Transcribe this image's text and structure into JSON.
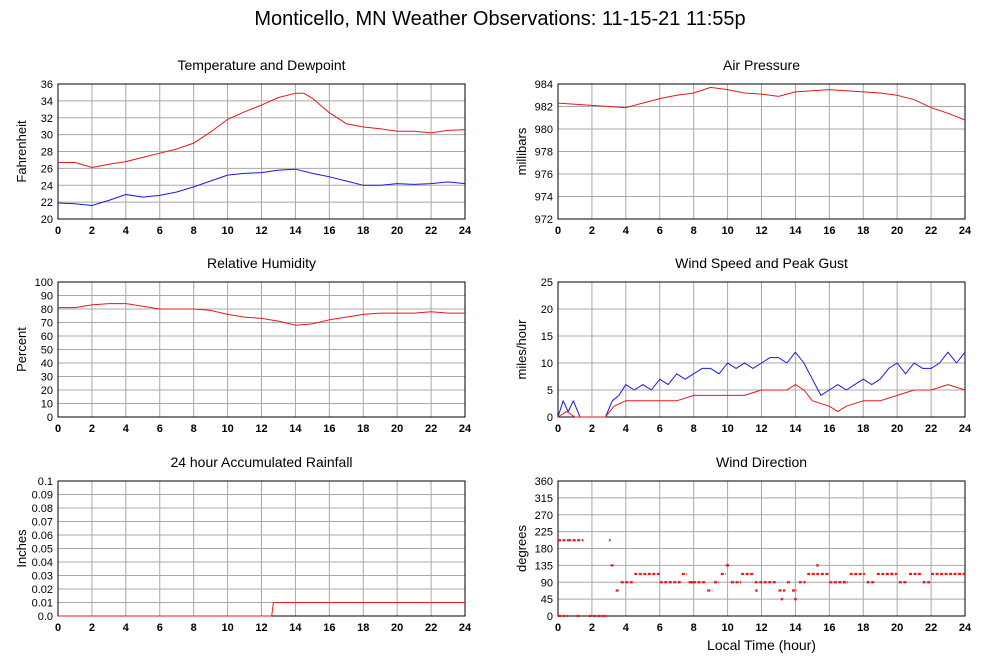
{
  "page_title": "Monticello, MN Weather Observations: 11-15-21 11:55p",
  "colors": {
    "red": "#e8191b",
    "blue": "#1a1adc",
    "grid": "#a8a8a8",
    "axis": "#000000"
  },
  "chart_data": [
    {
      "id": "temp",
      "type": "line",
      "title": "Temperature and Dewpoint",
      "xlabel": "",
      "ylabel": "Fahrenheit",
      "xlim": [
        0,
        24
      ],
      "ylim": [
        20,
        36
      ],
      "xticks": [
        0,
        2,
        4,
        6,
        8,
        10,
        12,
        14,
        16,
        18,
        20,
        22,
        24
      ],
      "yticks": [
        20,
        22,
        24,
        26,
        28,
        30,
        32,
        34,
        36
      ],
      "series": [
        {
          "color": "red",
          "points": [
            [
              0,
              26.7
            ],
            [
              1,
              26.7
            ],
            [
              2,
              26.1
            ],
            [
              3,
              26.5
            ],
            [
              4,
              26.8
            ],
            [
              5,
              27.3
            ],
            [
              6,
              27.8
            ],
            [
              7,
              28.3
            ],
            [
              8,
              29.0
            ],
            [
              9,
              30.3
            ],
            [
              10,
              31.8
            ],
            [
              11,
              32.7
            ],
            [
              12,
              33.5
            ],
            [
              13,
              34.4
            ],
            [
              14,
              34.9
            ],
            [
              14.5,
              34.9
            ],
            [
              15,
              34.3
            ],
            [
              16,
              32.6
            ],
            [
              17,
              31.3
            ],
            [
              18,
              30.9
            ],
            [
              19,
              30.7
            ],
            [
              20,
              30.4
            ],
            [
              21,
              30.4
            ],
            [
              22,
              30.2
            ],
            [
              23,
              30.5
            ],
            [
              24,
              30.6
            ]
          ]
        },
        {
          "color": "blue",
          "points": [
            [
              0,
              21.9
            ],
            [
              1,
              21.8
            ],
            [
              2,
              21.6
            ],
            [
              3,
              22.2
            ],
            [
              4,
              22.9
            ],
            [
              5,
              22.6
            ],
            [
              6,
              22.8
            ],
            [
              7,
              23.2
            ],
            [
              8,
              23.8
            ],
            [
              9,
              24.5
            ],
            [
              10,
              25.2
            ],
            [
              11,
              25.4
            ],
            [
              12,
              25.5
            ],
            [
              13,
              25.8
            ],
            [
              14,
              25.9
            ],
            [
              15,
              25.4
            ],
            [
              16,
              25.0
            ],
            [
              17,
              24.5
            ],
            [
              18,
              24.0
            ],
            [
              19,
              24.0
            ],
            [
              20,
              24.2
            ],
            [
              21,
              24.1
            ],
            [
              22,
              24.2
            ],
            [
              23,
              24.4
            ],
            [
              24,
              24.2
            ]
          ]
        }
      ]
    },
    {
      "id": "pressure",
      "type": "line",
      "title": "Air Pressure",
      "xlabel": "",
      "ylabel": "millibars",
      "xlim": [
        0,
        24
      ],
      "ylim": [
        972,
        984
      ],
      "xticks": [
        0,
        2,
        4,
        6,
        8,
        10,
        12,
        14,
        16,
        18,
        20,
        22,
        24
      ],
      "yticks": [
        972,
        974,
        976,
        978,
        980,
        982,
        984
      ],
      "series": [
        {
          "color": "red",
          "points": [
            [
              0,
              982.3
            ],
            [
              1,
              982.2
            ],
            [
              2,
              982.1
            ],
            [
              3,
              982.0
            ],
            [
              4,
              981.9
            ],
            [
              5,
              982.3
            ],
            [
              6,
              982.7
            ],
            [
              7,
              983.0
            ],
            [
              8,
              983.2
            ],
            [
              9,
              983.7
            ],
            [
              10,
              983.5
            ],
            [
              11,
              983.2
            ],
            [
              12,
              983.1
            ],
            [
              13,
              982.9
            ],
            [
              14,
              983.3
            ],
            [
              15,
              983.4
            ],
            [
              16,
              983.5
            ],
            [
              17,
              983.4
            ],
            [
              18,
              983.3
            ],
            [
              19,
              983.2
            ],
            [
              20,
              983.0
            ],
            [
              21,
              982.6
            ],
            [
              22,
              981.9
            ],
            [
              23,
              981.4
            ],
            [
              24,
              980.8
            ]
          ]
        }
      ]
    },
    {
      "id": "humidity",
      "type": "line",
      "title": "Relative Humidity",
      "xlabel": "",
      "ylabel": "Percent",
      "xlim": [
        0,
        24
      ],
      "ylim": [
        0,
        100
      ],
      "xticks": [
        0,
        2,
        4,
        6,
        8,
        10,
        12,
        14,
        16,
        18,
        20,
        22,
        24
      ],
      "yticks": [
        0,
        10,
        20,
        30,
        40,
        50,
        60,
        70,
        80,
        90,
        100
      ],
      "series": [
        {
          "color": "red",
          "points": [
            [
              0,
              81
            ],
            [
              1,
              81
            ],
            [
              2,
              83
            ],
            [
              3,
              84
            ],
            [
              4,
              84
            ],
            [
              5,
              82
            ],
            [
              6,
              80
            ],
            [
              7,
              80
            ],
            [
              8,
              80
            ],
            [
              9,
              79
            ],
            [
              10,
              76
            ],
            [
              11,
              74
            ],
            [
              12,
              73
            ],
            [
              13,
              71
            ],
            [
              14,
              68
            ],
            [
              15,
              69
            ],
            [
              16,
              72
            ],
            [
              17,
              74
            ],
            [
              18,
              76
            ],
            [
              19,
              77
            ],
            [
              20,
              77
            ],
            [
              21,
              77
            ],
            [
              22,
              78
            ],
            [
              23,
              77
            ],
            [
              24,
              77
            ]
          ]
        }
      ]
    },
    {
      "id": "wind",
      "type": "line",
      "title": "Wind Speed and Peak Gust",
      "xlabel": "",
      "ylabel": "miles/hour",
      "xlim": [
        0,
        24
      ],
      "ylim": [
        0,
        25
      ],
      "xticks": [
        0,
        2,
        4,
        6,
        8,
        10,
        12,
        14,
        16,
        18,
        20,
        22,
        24
      ],
      "yticks": [
        0,
        5,
        10,
        15,
        20,
        25
      ],
      "series": [
        {
          "color": "blue",
          "points": [
            [
              0,
              0
            ],
            [
              0.3,
              3
            ],
            [
              0.6,
              1
            ],
            [
              0.9,
              3
            ],
            [
              1.3,
              0
            ],
            [
              2,
              0
            ],
            [
              2.8,
              0
            ],
            [
              3.2,
              3
            ],
            [
              3.6,
              4
            ],
            [
              4,
              6
            ],
            [
              4.5,
              5
            ],
            [
              5,
              6
            ],
            [
              5.5,
              5
            ],
            [
              6,
              7
            ],
            [
              6.5,
              6
            ],
            [
              7,
              8
            ],
            [
              7.5,
              7
            ],
            [
              8,
              8
            ],
            [
              8.5,
              9
            ],
            [
              9,
              9
            ],
            [
              9.5,
              8
            ],
            [
              10,
              10
            ],
            [
              10.5,
              9
            ],
            [
              11,
              10
            ],
            [
              11.5,
              9
            ],
            [
              12,
              10
            ],
            [
              12.5,
              11
            ],
            [
              13,
              11
            ],
            [
              13.5,
              10
            ],
            [
              14,
              12
            ],
            [
              14.5,
              10
            ],
            [
              15,
              7
            ],
            [
              15.5,
              4
            ],
            [
              16,
              5
            ],
            [
              16.5,
              6
            ],
            [
              17,
              5
            ],
            [
              17.5,
              6
            ],
            [
              18,
              7
            ],
            [
              18.5,
              6
            ],
            [
              19,
              7
            ],
            [
              19.5,
              9
            ],
            [
              20,
              10
            ],
            [
              20.5,
              8
            ],
            [
              21,
              10
            ],
            [
              21.5,
              9
            ],
            [
              22,
              9
            ],
            [
              22.5,
              10
            ],
            [
              23,
              12
            ],
            [
              23.5,
              10
            ],
            [
              24,
              12
            ]
          ]
        },
        {
          "color": "red",
          "points": [
            [
              0,
              0
            ],
            [
              0.5,
              1
            ],
            [
              1,
              0
            ],
            [
              2.8,
              0
            ],
            [
              3.3,
              2
            ],
            [
              4,
              3
            ],
            [
              5,
              3
            ],
            [
              6,
              3
            ],
            [
              7,
              3
            ],
            [
              8,
              4
            ],
            [
              9,
              4
            ],
            [
              10,
              4
            ],
            [
              11,
              4
            ],
            [
              12,
              5
            ],
            [
              13,
              5
            ],
            [
              13.5,
              5
            ],
            [
              14,
              6
            ],
            [
              14.5,
              5
            ],
            [
              15,
              3
            ],
            [
              16,
              2
            ],
            [
              16.5,
              1
            ],
            [
              17,
              2
            ],
            [
              18,
              3
            ],
            [
              19,
              3
            ],
            [
              20,
              4
            ],
            [
              21,
              5
            ],
            [
              22,
              5
            ],
            [
              23,
              6
            ],
            [
              24,
              5
            ]
          ]
        }
      ]
    },
    {
      "id": "rain",
      "type": "line",
      "title": "24 hour Accumulated Rainfall",
      "xlabel": "",
      "ylabel": "Inches",
      "xlim": [
        0,
        24
      ],
      "ylim": [
        0,
        0.1
      ],
      "xticks": [
        0,
        2,
        4,
        6,
        8,
        10,
        12,
        14,
        16,
        18,
        20,
        22,
        24
      ],
      "yticks": [
        0.0,
        0.01,
        0.02,
        0.03,
        0.04,
        0.05,
        0.06,
        0.07,
        0.08,
        0.09,
        0.1
      ],
      "ytick_labels": [
        "0.0",
        "0.01",
        "0.02",
        "0.03",
        "0.04",
        "0.05",
        "0.06",
        "0.07",
        "0.08",
        "0.09",
        "0.1"
      ],
      "series": [
        {
          "color": "red",
          "points": [
            [
              0,
              0
            ],
            [
              12.6,
              0
            ],
            [
              12.7,
              0.01
            ],
            [
              24,
              0.01
            ]
          ]
        }
      ]
    },
    {
      "id": "direction",
      "type": "scatter",
      "title": "Wind Direction",
      "xlabel": "Local Time (hour)",
      "ylabel": "degrees",
      "xlim": [
        0,
        24
      ],
      "ylim": [
        0,
        360
      ],
      "xticks": [
        0,
        2,
        4,
        6,
        8,
        10,
        12,
        14,
        16,
        18,
        20,
        22,
        24
      ],
      "yticks": [
        0,
        45,
        90,
        135,
        180,
        225,
        270,
        315,
        360
      ],
      "segments": [
        [
          0,
          0.6,
          202
        ],
        [
          0,
          0.6,
          0
        ],
        [
          0.6,
          1.5,
          202
        ],
        [
          1.1,
          1.3,
          0
        ],
        [
          1.8,
          2.9,
          0
        ],
        [
          3.0,
          3.1,
          202
        ],
        [
          3.1,
          3.3,
          135
        ],
        [
          3.4,
          3.6,
          68
        ],
        [
          3.7,
          4.5,
          90
        ],
        [
          4.5,
          6.0,
          112
        ],
        [
          6.0,
          7.3,
          90
        ],
        [
          7.3,
          7.6,
          112
        ],
        [
          7.7,
          8.7,
          90
        ],
        [
          8.8,
          9.1,
          68
        ],
        [
          9.2,
          9.5,
          90
        ],
        [
          9.6,
          9.9,
          112
        ],
        [
          9.9,
          10.1,
          135
        ],
        [
          10.2,
          10.8,
          90
        ],
        [
          10.8,
          11.6,
          112
        ],
        [
          11.6,
          12.9,
          90
        ],
        [
          13.0,
          13.4,
          68
        ],
        [
          13.5,
          13.7,
          90
        ],
        [
          13.8,
          14.1,
          68
        ],
        [
          14.2,
          14.6,
          90
        ],
        [
          14.7,
          15.4,
          112
        ],
        [
          15.5,
          16.0,
          112
        ],
        [
          16.0,
          17.1,
          90
        ],
        [
          17.2,
          18.1,
          112
        ],
        [
          18.2,
          18.7,
          90
        ],
        [
          18.8,
          20.0,
          112
        ],
        [
          20.1,
          20.6,
          90
        ],
        [
          20.7,
          21.4,
          112
        ],
        [
          21.5,
          22.0,
          90
        ],
        [
          22.0,
          24.0,
          112
        ]
      ],
      "points": [
        [
          13.2,
          45
        ],
        [
          14.0,
          45
        ],
        [
          15.3,
          135
        ],
        [
          10.0,
          135
        ],
        [
          7.9,
          90
        ],
        [
          11.7,
          68
        ],
        [
          19.7,
          112
        ],
        [
          16.9,
          90
        ]
      ]
    }
  ]
}
